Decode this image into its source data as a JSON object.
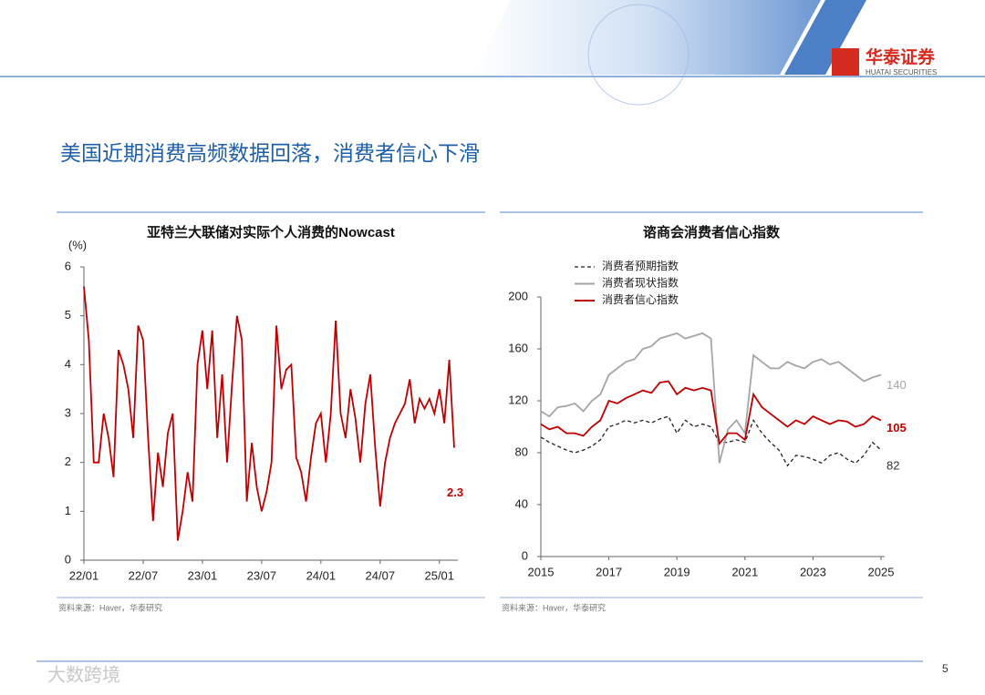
{
  "title": "美国近期消费高频数据回落，消费者信心下滑",
  "brand": "华泰证券",
  "brand_en": "HUATAI SECURITIES",
  "page_number": "5",
  "watermark": "大数跨境",
  "chart_data": [
    {
      "type": "line",
      "title": "亚特兰大联储对实际个人消费的Nowcast",
      "y_label": "(%)",
      "source": "资料来源：Haver，华泰研究",
      "color": "#c00000",
      "categories": [
        "22/01",
        null,
        null,
        null,
        null,
        null,
        null,
        null,
        null,
        null,
        null,
        null,
        "22/07",
        null,
        null,
        null,
        null,
        null,
        null,
        null,
        null,
        null,
        null,
        null,
        "23/01",
        null,
        null,
        null,
        null,
        null,
        null,
        null,
        null,
        null,
        null,
        null,
        "23/07",
        null,
        null,
        null,
        null,
        null,
        null,
        null,
        null,
        null,
        null,
        null,
        "24/01",
        null,
        null,
        null,
        null,
        null,
        null,
        null,
        null,
        null,
        null,
        null,
        "24/07",
        null,
        null,
        null,
        null,
        null,
        null,
        null,
        null,
        null,
        null,
        null,
        "25/01",
        null,
        null,
        null
      ],
      "values": [
        5.6,
        4.5,
        2.0,
        2.0,
        3.0,
        2.5,
        1.7,
        4.3,
        4.0,
        3.5,
        2.5,
        4.8,
        4.5,
        2.5,
        0.8,
        2.2,
        1.5,
        2.6,
        3.0,
        0.4,
        1.0,
        1.8,
        1.2,
        4.0,
        4.7,
        3.5,
        4.7,
        2.5,
        3.8,
        2.0,
        3.6,
        5.0,
        4.5,
        1.2,
        2.4,
        1.5,
        1.0,
        1.4,
        2.0,
        4.8,
        3.5,
        3.9,
        4.0,
        2.1,
        1.8,
        1.2,
        2.1,
        2.8,
        3.0,
        2.0,
        3.0,
        4.9,
        3.0,
        2.5,
        3.5,
        2.9,
        2.0,
        3.2,
        3.8,
        2.3,
        1.1,
        2.0,
        2.5,
        2.8,
        3.0,
        3.2,
        3.7,
        2.8,
        3.3,
        3.1,
        3.3,
        3.0,
        3.5,
        2.8,
        4.1,
        2.3
      ],
      "ylim": [
        0,
        6
      ],
      "yticks": [
        0,
        1,
        2,
        3,
        4,
        5,
        6
      ]
    },
    {
      "type": "line",
      "title": "谘商会消费者信心指数",
      "source": "资料来源：Haver，华泰研究",
      "x": [
        2015,
        2015.25,
        2015.5,
        2015.75,
        2016,
        2016.25,
        2016.5,
        2016.75,
        2017,
        2017.25,
        2017.5,
        2017.75,
        2018,
        2018.25,
        2018.5,
        2018.75,
        2019,
        2019.25,
        2019.5,
        2019.75,
        2020,
        2020.25,
        2020.5,
        2020.75,
        2021,
        2021.25,
        2021.5,
        2021.75,
        2022,
        2022.25,
        2022.5,
        2022.75,
        2023,
        2023.25,
        2023.5,
        2023.75,
        2024,
        2024.25,
        2024.5,
        2024.75,
        2025
      ],
      "series": [
        {
          "name": "消费者预期指数",
          "color": "#222222",
          "dashed": true,
          "values": [
            92,
            88,
            85,
            82,
            80,
            82,
            85,
            90,
            100,
            102,
            105,
            103,
            105,
            103,
            106,
            108,
            95,
            105,
            100,
            102,
            100,
            88,
            88,
            90,
            88,
            105,
            95,
            88,
            82,
            70,
            78,
            77,
            75,
            72,
            78,
            80,
            75,
            72,
            78,
            88,
            82
          ]
        },
        {
          "name": "消费者现状指数",
          "color": "#a6a6a6",
          "dashed": false,
          "values": [
            112,
            108,
            115,
            116,
            118,
            112,
            120,
            125,
            140,
            145,
            150,
            152,
            160,
            162,
            168,
            170,
            172,
            168,
            170,
            172,
            168,
            72,
            98,
            105,
            95,
            155,
            150,
            145,
            145,
            150,
            147,
            145,
            150,
            152,
            148,
            150,
            145,
            140,
            135,
            138,
            140
          ]
        },
        {
          "name": "消费者信心指数",
          "color": "#c00000",
          "dashed": false,
          "values": [
            102,
            98,
            100,
            95,
            95,
            93,
            100,
            105,
            120,
            118,
            122,
            125,
            128,
            126,
            134,
            135,
            125,
            130,
            128,
            130,
            128,
            87,
            95,
            95,
            90,
            125,
            115,
            110,
            105,
            100,
            105,
            102,
            108,
            105,
            102,
            105,
            104,
            100,
            102,
            108,
            105
          ]
        }
      ],
      "xlim": [
        2015,
        2025
      ],
      "xticks": [
        2015,
        2017,
        2019,
        2021,
        2023,
        2025
      ],
      "ylim": [
        0,
        200
      ],
      "yticks": [
        0,
        40,
        80,
        120,
        160,
        200
      ]
    }
  ]
}
